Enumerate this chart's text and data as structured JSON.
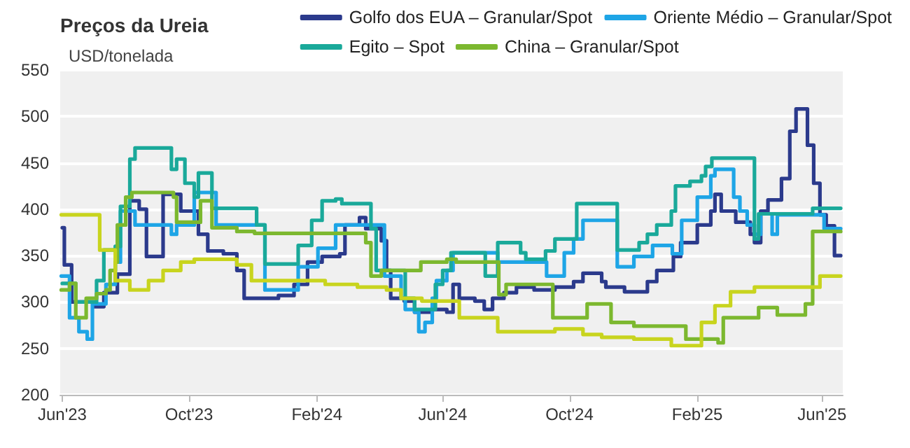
{
  "chart_data": {
    "type": "step",
    "title": "Preços da Ureia",
    "subtitle": "USD/tonelada",
    "xlim": [
      "2023-05-30",
      "2025-06-21"
    ],
    "xticks": [
      {
        "value": "2023-06-01",
        "label": "Jun'23"
      },
      {
        "value": "2023-10-01",
        "label": "Oct'23"
      },
      {
        "value": "2024-02-01",
        "label": "Feb'24"
      },
      {
        "value": "2024-06-01",
        "label": "Jun'24"
      },
      {
        "value": "2024-10-01",
        "label": "Oct'24"
      },
      {
        "value": "2025-02-01",
        "label": "Feb'25"
      },
      {
        "value": "2025-06-01",
        "label": "Jun'25"
      }
    ],
    "ylim": [
      200,
      550
    ],
    "yticks": [
      200,
      250,
      300,
      350,
      400,
      450,
      500,
      550
    ],
    "grid": "y",
    "legend": "top right",
    "marker": "none",
    "line_style": "solid",
    "series": [
      {
        "name": "Golfo dos EUA – Granular/Spot",
        "color": "#2b3a8c",
        "x": [
          "2023-06-01",
          "2023-06-03",
          "2023-06-10",
          "2023-07-01",
          "2023-07-11",
          "2023-07-24",
          "2023-08-05",
          "2023-08-14",
          "2023-08-21",
          "2023-09-03",
          "2023-09-06",
          "2023-09-23",
          "2023-10-10",
          "2023-10-19",
          "2023-11-03",
          "2023-11-16",
          "2023-11-23",
          "2023-12-12",
          "2023-12-26",
          "2024-01-10",
          "2024-01-23",
          "2024-02-06",
          "2024-02-23",
          "2024-02-28",
          "2024-03-13",
          "2024-03-19",
          "2024-04-03",
          "2024-04-08",
          "2024-04-12",
          "2024-04-25",
          "2024-05-05",
          "2024-05-22",
          "2024-06-05",
          "2024-06-11",
          "2024-06-17",
          "2024-07-02",
          "2024-07-11",
          "2024-07-19",
          "2024-07-30",
          "2024-08-11",
          "2024-08-28",
          "2024-09-17",
          "2024-10-05",
          "2024-10-14",
          "2024-11-01",
          "2024-11-05",
          "2024-11-23",
          "2024-12-11",
          "2024-12-15",
          "2024-12-24",
          "2025-01-09",
          "2025-01-16",
          "2025-02-01",
          "2025-02-14",
          "2025-02-18",
          "2025-02-24",
          "2025-03-10",
          "2025-03-24",
          "2025-03-28",
          "2025-04-03",
          "2025-04-10",
          "2025-04-23",
          "2025-05-01",
          "2025-05-07",
          "2025-05-14",
          "2025-05-18",
          "2025-05-24",
          "2025-05-30",
          "2025-06-05",
          "2025-06-13",
          "2025-06-19"
        ],
        "values": [
          380,
          340,
          300,
          295,
          310,
          330,
          409,
          400,
          349,
          349,
          416,
          398,
          373,
          355,
          352,
          334,
          304,
          304,
          307,
          319,
          343,
          349,
          352,
          383,
          391,
          379,
          366,
          334,
          304,
          301,
          289,
          292,
          289,
          319,
          304,
          301,
          292,
          304,
          310,
          316,
          313,
          316,
          322,
          331,
          322,
          316,
          311,
          311,
          322,
          334,
          349,
          364,
          383,
          398,
          416,
          398,
          386,
          373,
          364,
          398,
          410,
          433,
          484,
          508,
          508,
          469,
          428,
          394,
          382,
          350,
          350
        ]
      },
      {
        "name": "Oriente Médio – Granular/Spot",
        "color": "#1ea5e6",
        "x": [
          "2023-05-31",
          "2023-06-08",
          "2023-06-17",
          "2023-06-25",
          "2023-06-30",
          "2023-07-13",
          "2023-07-22",
          "2023-07-27",
          "2023-08-10",
          "2023-09-14",
          "2023-09-19",
          "2023-10-06",
          "2023-10-27",
          "2023-12-13",
          "2024-01-14",
          "2024-02-02",
          "2024-02-19",
          "2024-04-06",
          "2024-04-22",
          "2024-04-26",
          "2024-05-05",
          "2024-05-09",
          "2024-05-15",
          "2024-05-22",
          "2024-05-26",
          "2024-06-05",
          "2024-06-11",
          "2024-07-24",
          "2024-09-09",
          "2024-09-26",
          "2024-10-05",
          "2024-10-14",
          "2024-11-16",
          "2024-12-02",
          "2024-12-20",
          "2025-01-08",
          "2025-01-17",
          "2025-02-01",
          "2025-02-14",
          "2025-02-18",
          "2025-03-08",
          "2025-03-14",
          "2025-03-21",
          "2025-03-28",
          "2025-04-03",
          "2025-04-14",
          "2025-04-19",
          "2025-06-03",
          "2025-06-19"
        ],
        "values": [
          328,
          283,
          268,
          260,
          298,
          319,
          343,
          398,
          383,
          373,
          383,
          418,
          383,
          313,
          338,
          358,
          383,
          328,
          304,
          292,
          289,
          268,
          278,
          304,
          323,
          334,
          353,
          343,
          328,
          353,
          368,
          388,
          338,
          349,
          361,
          352,
          388,
          413,
          436,
          443,
          413,
          398,
          383,
          373,
          395,
          373,
          394,
          379,
          379
        ]
      },
      {
        "name": "Egito – Spot",
        "color": "#1aa99a",
        "x": [
          "2023-06-01",
          "2023-06-14",
          "2023-07-04",
          "2023-07-11",
          "2023-07-22",
          "2023-07-27",
          "2023-08-05",
          "2023-08-10",
          "2023-09-14",
          "2023-09-19",
          "2023-09-27",
          "2023-10-06",
          "2023-10-10",
          "2023-10-23",
          "2023-12-05",
          "2023-12-13",
          "2024-01-14",
          "2024-01-27",
          "2024-02-06",
          "2024-02-19",
          "2024-02-25",
          "2024-03-24",
          "2024-03-29",
          "2024-04-26",
          "2024-05-05",
          "2024-05-25",
          "2024-06-01",
          "2024-06-09",
          "2024-07-12",
          "2024-07-24",
          "2024-08-15",
          "2024-08-20",
          "2024-09-08",
          "2024-09-17",
          "2024-10-08",
          "2024-11-16",
          "2024-12-07",
          "2024-12-15",
          "2024-12-24",
          "2025-01-07",
          "2025-01-11",
          "2025-01-25",
          "2025-02-05",
          "2025-02-09",
          "2025-02-15",
          "2025-03-28",
          "2025-04-01",
          "2025-05-23",
          "2025-06-19"
        ],
        "values": [
          320,
          300,
          323,
          356,
          360,
          403,
          454,
          466,
          443,
          454,
          428,
          413,
          439,
          401,
          383,
          341,
          361,
          388,
          409,
          411,
          406,
          379,
          334,
          304,
          292,
          319,
          334,
          353,
          328,
          364,
          353,
          346,
          355,
          368,
          406,
          356,
          364,
          373,
          383,
          398,
          425,
          430,
          436,
          446,
          455,
          368,
          395,
          401,
          401
        ]
      },
      {
        "name": "China – Granular/Spot",
        "color": "#7cb82f",
        "x": [
          "2023-05-31",
          "2023-06-08",
          "2023-06-14",
          "2023-06-24",
          "2023-07-04",
          "2023-07-13",
          "2023-07-17",
          "2023-07-22",
          "2023-07-24",
          "2023-08-01",
          "2023-08-07",
          "2023-09-16",
          "2023-09-19",
          "2023-10-12",
          "2023-10-23",
          "2023-11-16",
          "2023-12-03",
          "2024-03-19",
          "2024-03-24",
          "2024-04-03",
          "2024-05-11",
          "2024-06-05",
          "2024-06-14",
          "2024-07-25",
          "2024-08-01",
          "2024-09-15",
          "2024-10-18",
          "2024-11-10",
          "2024-12-02",
          "2025-01-21",
          "2025-02-21",
          "2025-02-26",
          "2025-04-01",
          "2025-04-19",
          "2025-05-16",
          "2025-05-23",
          "2025-06-19"
        ],
        "values": [
          313,
          320,
          283,
          304,
          309,
          313,
          334,
          343,
          383,
          413,
          418,
          413,
          386,
          409,
          380,
          376,
          374,
          364,
          328,
          334,
          343,
          346,
          343,
          308,
          319,
          283,
          298,
          278,
          274,
          260,
          256,
          283,
          294,
          286,
          298,
          376,
          376
        ]
      },
      {
        "color": "#c8d41e",
        "x": [
          "2023-05-31",
          "2023-07-07",
          "2023-07-22",
          "2023-08-05",
          "2023-08-23",
          "2023-09-06",
          "2023-09-23",
          "2023-10-06",
          "2023-11-16",
          "2023-11-30",
          "2024-02-09",
          "2024-03-11",
          "2024-04-08",
          "2024-04-22",
          "2024-05-12",
          "2024-06-17",
          "2024-07-24",
          "2024-09-17",
          "2024-10-14",
          "2024-11-01",
          "2024-12-02",
          "2025-01-07",
          "2025-02-05",
          "2025-02-18",
          "2025-03-05",
          "2025-03-28",
          "2025-05-30",
          "2025-06-19"
        ],
        "values": [
          394,
          356,
          323,
          313,
          323,
          334,
          343,
          346,
          340,
          323,
          319,
          316,
          313,
          304,
          301,
          283,
          268,
          271,
          265,
          262,
          260,
          253,
          278,
          296,
          311,
          316,
          328,
          328
        ]
      }
    ]
  }
}
